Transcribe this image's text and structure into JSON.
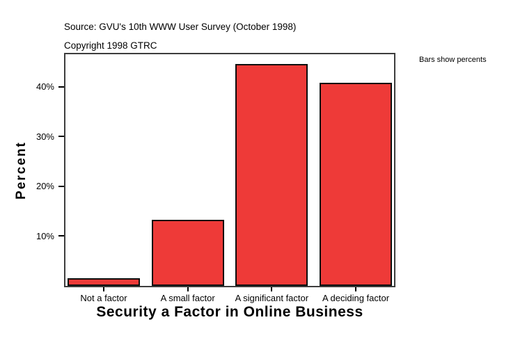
{
  "header": {
    "source_line": "Source: GVU's 10th WWW User Survey (October 1998)",
    "copyright_line": "Copyright 1998 GTRC"
  },
  "note": "Bars show percents",
  "chart_data": {
    "type": "bar",
    "title": "Security a Factor in Online Business",
    "xlabel": "Security a Factor in Online Business",
    "ylabel": "Percent",
    "categories": [
      "Not a factor",
      "A small factor",
      "A significant factor",
      "A deciding factor"
    ],
    "values": [
      1.5,
      13.2,
      44.5,
      40.8
    ],
    "yticks": [
      10,
      20,
      30,
      40
    ],
    "ytick_labels": [
      "10%",
      "20%",
      "30%",
      "40%"
    ],
    "ylim": [
      0,
      46.5
    ],
    "grid": false,
    "legend_position": "none",
    "bar_color": "#ee3a38",
    "bar_border_color": "#0d0d0d",
    "frame_color": "#3d3d3d"
  }
}
